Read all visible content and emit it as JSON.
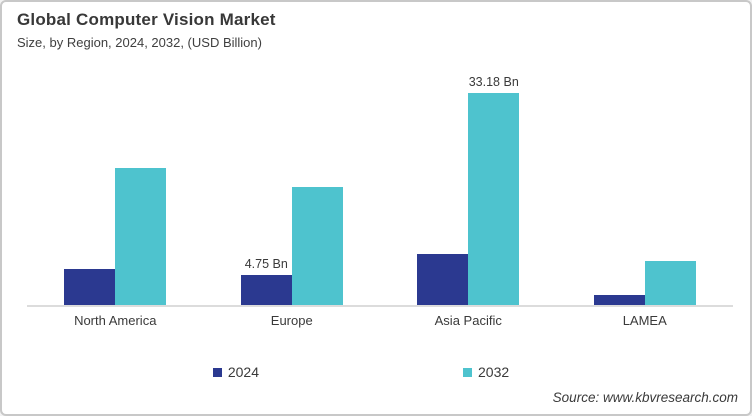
{
  "header": {
    "title": "Global Computer Vision Market",
    "subtitle": "Size, by Region, 2024, 2032, (USD Billion)"
  },
  "source": "Source: www.kbvresearch.com",
  "colors": {
    "series_2024": "#2B3990",
    "series_2032": "#4EC3CE",
    "axis_line": "#DCDCDC",
    "text": "#3A3A3A",
    "border": "#C8C8C8",
    "background": "#FFFFFF"
  },
  "legend": [
    {
      "label": "2024",
      "color": "#2B3990"
    },
    {
      "label": "2032",
      "color": "#4EC3CE"
    }
  ],
  "chart_data": {
    "type": "bar",
    "title": "Global Computer Vision Market",
    "subtitle": "Size, by Region, 2024, 2032, (USD Billion)",
    "unit": "USD Billion",
    "categories": [
      "North America",
      "Europe",
      "Asia Pacific",
      "LAMEA"
    ],
    "series": [
      {
        "name": "2024",
        "color": "#2B3990",
        "values": [
          5.6,
          4.75,
          8.0,
          1.6
        ]
      },
      {
        "name": "2032",
        "color": "#4EC3CE",
        "values": [
          21.4,
          18.5,
          33.18,
          6.9
        ]
      }
    ],
    "data_labels": [
      {
        "series": "2024",
        "category_index": 1,
        "text": "4.75 Bn"
      },
      {
        "series": "2032",
        "category_index": 2,
        "text": "33.18 Bn"
      }
    ],
    "xlabel": "",
    "ylabel": "",
    "ylim": [
      0,
      34
    ],
    "grid": false,
    "y_axis_visible": false,
    "legend_position": "bottom"
  }
}
